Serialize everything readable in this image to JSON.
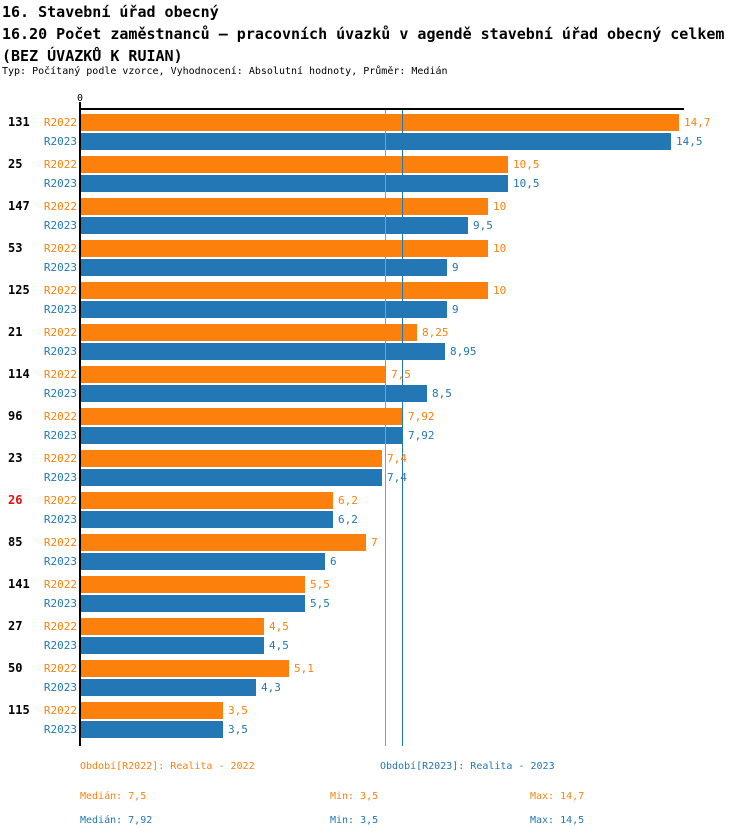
{
  "header": {
    "title_line1": "16. Stavební úřad obecný",
    "title_line2": "16.20 Počet zaměstnanců – pracovních úvazků v agendě stavební úřad obecný celkem",
    "title_line3": "(BEZ ÚVAZKŮ K RUIAN)",
    "subtitle": "Typ: Počítaný podle vzorce, Vyhodnocení: Absolutní hodnoty, Průměr: Medián"
  },
  "chart_data": {
    "type": "bar",
    "orientation": "horizontal",
    "title": "16.20 Počet zaměstnanců – pracovních úvazků v agendě stavební úřad obecný celkem (BEZ ÚVAZKŮ K RUIAN)",
    "categories": [
      "131",
      "25",
      "147",
      "53",
      "125",
      "21",
      "114",
      "96",
      "23",
      "26",
      "85",
      "141",
      "27",
      "50",
      "115"
    ],
    "highlighted_category": "26",
    "highlight_color": "#e8100c",
    "axis": {
      "zero_label": "0",
      "xmin": 0,
      "grid": false
    },
    "series": [
      {
        "name": "R2022",
        "color": "#fc810c",
        "values": [
          14.7,
          10.5,
          10,
          10,
          10,
          8.25,
          7.5,
          7.92,
          7.4,
          6.2,
          7,
          5.5,
          4.5,
          5.1,
          3.5
        ],
        "value_labels": [
          "14,7",
          "10,5",
          "10",
          "10",
          "10",
          "8,25",
          "7,5",
          "7,92",
          "7,4",
          "6,2",
          "7",
          "5,5",
          "4,5",
          "5,1",
          "3,5"
        ],
        "median": 7.5
      },
      {
        "name": "R2023",
        "color": "#2277b4",
        "values": [
          14.5,
          10.5,
          9.5,
          9,
          9,
          8.95,
          8.5,
          7.92,
          7.4,
          6.2,
          6,
          5.5,
          4.5,
          4.3,
          3.5
        ],
        "value_labels": [
          "14,5",
          "10,5",
          "9,5",
          "9",
          "9",
          "8,95",
          "8,5",
          "7,92",
          "7,4",
          "6,2",
          "6",
          "5,5",
          "4,5",
          "4,3",
          "3,5"
        ],
        "median": 7.92
      }
    ],
    "legend": [
      {
        "label": "Období[R2022]: Realita - 2022",
        "color": "#fc810c"
      },
      {
        "label": "Období[R2023]: Realita - 2023",
        "color": "#2277b4"
      }
    ],
    "stats": [
      {
        "median": "Medián: 7,5",
        "min": "Min: 3,5",
        "max": "Max: 14,7",
        "color": "#fc810c"
      },
      {
        "median": "Medián: 7,92",
        "min": "Min: 3,5",
        "max": "Max: 14,5",
        "color": "#2277b4"
      }
    ]
  }
}
